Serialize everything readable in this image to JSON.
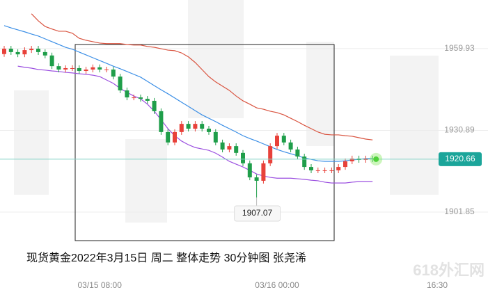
{
  "chart_data": {
    "type": "candlestick",
    "ylim": [
      1878.4,
      1977.2
    ],
    "yticks": [
      1959.93,
      1930.89,
      1901.85
    ],
    "grid": true,
    "categories": [
      null,
      null,
      null,
      null,
      null,
      null,
      null,
      null,
      null,
      null,
      null,
      null,
      null,
      null,
      "03/15 08:00",
      null,
      null,
      null,
      null,
      null,
      null,
      null,
      null,
      null,
      null,
      null,
      null,
      null,
      null,
      null,
      null,
      null,
      null,
      null,
      null,
      null,
      null,
      null,
      null,
      null,
      "03/16 00:00",
      null,
      null,
      null,
      null,
      null,
      null,
      null,
      null,
      null,
      null,
      null,
      null,
      null,
      null
    ],
    "open": [
      1958.0,
      1959.9,
      1958.7,
      1957.9,
      1959.4,
      1959.9,
      1958.7,
      1957.5,
      1953.7,
      1952.5,
      1953.0,
      1953.0,
      1952.0,
      1952.5,
      1953.3,
      1952.5,
      1952.5,
      1950.0,
      1945.1,
      1942.6,
      1942.6,
      1942.1,
      1941.4,
      1937.7,
      1930.3,
      1926.6,
      1930.3,
      1933.2,
      1931.5,
      1933.2,
      1931.5,
      1930.3,
      1926.6,
      1924.1,
      1925.3,
      1922.9,
      1919.2,
      1914.2,
      1913.0,
      1919.2,
      1925.3,
      1929.0,
      1926.6,
      1924.1,
      1921.6,
      1917.9,
      1916.7,
      1916.7,
      1916.7,
      1916.7,
      1917.9,
      1919.9,
      1920.9,
      1920.4,
      1920.9
    ],
    "high": [
      1960.9,
      1960.9,
      1959.7,
      1960.4,
      1960.9,
      1960.9,
      1959.7,
      1958.5,
      1954.7,
      1954.0,
      1954.0,
      1954.0,
      1953.5,
      1954.3,
      1954.3,
      1953.5,
      1953.5,
      1951.0,
      1946.1,
      1943.6,
      1943.6,
      1943.1,
      1942.4,
      1938.7,
      1931.3,
      1931.3,
      1934.2,
      1934.2,
      1934.2,
      1934.2,
      1932.5,
      1931.3,
      1927.6,
      1926.3,
      1926.3,
      1923.9,
      1920.2,
      1915.2,
      1920.2,
      1926.3,
      1930.0,
      1930.0,
      1927.6,
      1925.1,
      1922.6,
      1918.9,
      1917.7,
      1917.7,
      1917.7,
      1918.9,
      1920.9,
      1921.9,
      1921.9,
      1921.9,
      1921.9
    ],
    "low": [
      1957.0,
      1957.7,
      1956.9,
      1956.9,
      1958.4,
      1957.7,
      1956.5,
      1952.7,
      1951.5,
      1951.5,
      1952.0,
      1951.0,
      1951.0,
      1951.5,
      1951.5,
      1951.5,
      1949.0,
      1944.1,
      1941.6,
      1941.6,
      1941.1,
      1940.4,
      1936.7,
      1929.3,
      1925.6,
      1925.6,
      1929.3,
      1930.5,
      1930.5,
      1930.5,
      1929.3,
      1925.6,
      1923.1,
      1923.1,
      1921.9,
      1918.2,
      1913.2,
      1907.07,
      1912.0,
      1918.2,
      1924.3,
      1925.6,
      1923.1,
      1920.6,
      1916.9,
      1915.7,
      1915.7,
      1915.7,
      1915.7,
      1915.7,
      1916.9,
      1918.9,
      1919.4,
      1919.4,
      1919.66
    ],
    "close": [
      1959.9,
      1958.7,
      1957.9,
      1959.4,
      1959.9,
      1958.7,
      1957.5,
      1953.7,
      1952.5,
      1953.0,
      1953.0,
      1952.0,
      1952.5,
      1953.3,
      1952.5,
      1952.5,
      1950.0,
      1945.1,
      1942.6,
      1942.6,
      1942.1,
      1941.4,
      1937.7,
      1930.3,
      1926.6,
      1930.3,
      1933.2,
      1931.5,
      1933.2,
      1931.5,
      1930.3,
      1926.6,
      1924.1,
      1925.3,
      1922.9,
      1919.2,
      1914.2,
      1913.0,
      1919.2,
      1925.3,
      1929.0,
      1926.6,
      1924.1,
      1921.6,
      1917.9,
      1916.7,
      1916.7,
      1916.7,
      1916.7,
      1917.9,
      1919.9,
      1920.9,
      1920.4,
      1920.9,
      1920.66
    ],
    "up_color": "#e8413a",
    "down_color": "#1f9e4a",
    "overlays": [
      {
        "color": "#d9533f",
        "values": [
          null,
          null,
          null,
          null,
          1972.3,
          1969.8,
          1967.8,
          1966.9,
          1966.1,
          1966.1,
          1965.4,
          1963.6,
          1962.9,
          1962.4,
          1961.9,
          1961.7,
          1961.7,
          1961.7,
          1961.4,
          1961.2,
          1961.2,
          1960.7,
          1960.4,
          1959.9,
          1959.4,
          1959.2,
          1958.4,
          1957.0,
          1955.0,
          1952.5,
          1950.0,
          1948.1,
          1946.6,
          1945.1,
          1943.1,
          1941.4,
          1940.2,
          1938.9,
          1938.4,
          1937.7,
          1937.2,
          1936.4,
          1935.2,
          1934.0,
          1932.7,
          1931.5,
          1930.3,
          1929.5,
          1929.3,
          1929.3,
          1929.0,
          1928.8,
          1928.3,
          1927.8,
          1927.5
        ]
      },
      {
        "color": "#3a8ee6",
        "values": [
          1968.1,
          1967.3,
          1966.6,
          1965.9,
          1965.1,
          1964.4,
          1963.4,
          1962.4,
          1961.4,
          1960.4,
          1959.7,
          1958.7,
          1957.7,
          1956.7,
          1955.7,
          1954.7,
          1953.7,
          1952.8,
          1951.8,
          1950.8,
          1949.8,
          1948.3,
          1946.8,
          1945.3,
          1943.9,
          1942.4,
          1940.9,
          1939.4,
          1937.9,
          1936.4,
          1935.2,
          1934.0,
          1932.7,
          1931.5,
          1930.3,
          1929.0,
          1928.0,
          1927.1,
          1926.1,
          1925.1,
          1924.1,
          1923.3,
          1922.6,
          1921.9,
          1921.1,
          1920.6,
          1920.1,
          1919.9,
          1919.9,
          1919.9,
          1920.1,
          1920.4,
          1920.6,
          1920.9,
          1920.9
        ]
      },
      {
        "color": "#9b4fe0",
        "values": [
          null,
          null,
          1953.7,
          1953.3,
          1953.0,
          1952.5,
          1952.3,
          1952.0,
          1951.8,
          1951.5,
          1951.3,
          1951.0,
          1950.8,
          1950.5,
          1950.0,
          1948.8,
          1947.6,
          1945.8,
          1944.4,
          1943.1,
          1942.1,
          1940.2,
          1937.7,
          1934.7,
          1931.5,
          1929.0,
          1927.1,
          1925.8,
          1924.8,
          1924.3,
          1923.8,
          1922.8,
          1921.4,
          1919.9,
          1918.9,
          1917.9,
          1916.7,
          1915.4,
          1914.7,
          1914.2,
          1913.9,
          1913.9,
          1913.9,
          1913.7,
          1913.5,
          1913.2,
          1913.0,
          1912.5,
          1912.2,
          1912.2,
          1912.2,
          1912.5,
          1912.7,
          1912.7,
          1912.7
        ]
      }
    ],
    "time_label_right": "16:30"
  },
  "caption": "现货黄金2022年3月15日  周二  整体走势 30分钟图  张尧浠",
  "watermark": "618外汇网"
}
